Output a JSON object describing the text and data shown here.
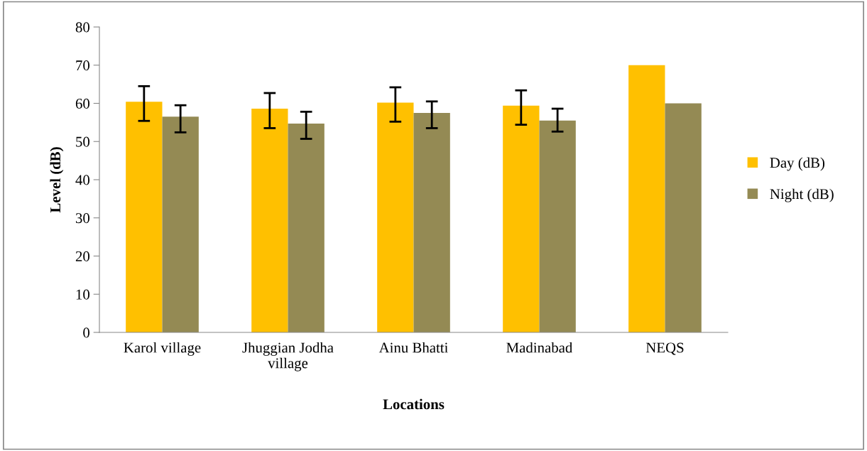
{
  "chart_data": {
    "type": "bar",
    "xlabel": "Locations",
    "ylabel": "Level (dB)",
    "categories": [
      "Karol village",
      "Jhuggian Jodha\nvillage",
      "Ainu Bhatti",
      "Madinabad",
      "NEQS"
    ],
    "series": [
      {
        "name": "Day (dB)",
        "color": "#ffc000",
        "values": [
          60.4,
          58.6,
          60.2,
          59.4,
          70
        ],
        "errors": [
          [
            55.4,
            64.5
          ],
          [
            53.5,
            62.7
          ],
          [
            55.2,
            64.2
          ],
          [
            54.4,
            63.4
          ],
          null
        ]
      },
      {
        "name": "Night (dB)",
        "color": "#948a54",
        "values": [
          56.5,
          54.7,
          57.5,
          55.5,
          60
        ],
        "errors": [
          [
            52.4,
            59.5
          ],
          [
            50.7,
            57.8
          ],
          [
            53.5,
            60.5
          ],
          [
            52.6,
            58.6
          ],
          null
        ]
      }
    ],
    "ylim": [
      0,
      80
    ],
    "yticks": [
      0,
      10,
      20,
      30,
      40,
      50,
      60,
      70,
      80
    ],
    "grid": false,
    "legend": "right"
  }
}
